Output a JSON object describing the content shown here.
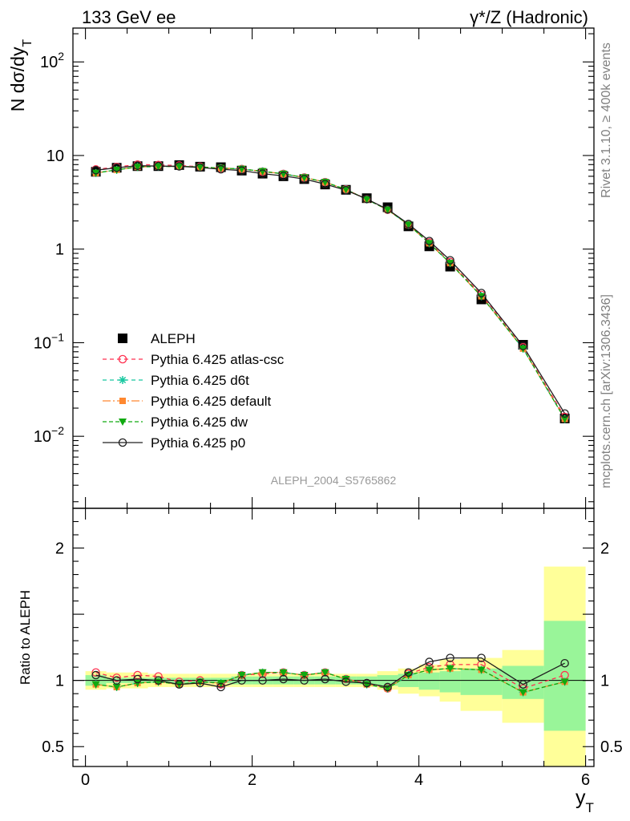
{
  "header": {
    "energy_label": "133 GeV ee",
    "process_label": "γ*/Z (Hadronic)"
  },
  "side_labels": {
    "rivet": "Rivet 3.1.10, ≥ 400k events",
    "source": "mcplots.cern.ch [arXiv:1306.3436]"
  },
  "analysis_id": "ALEPH_2004_S5765862",
  "chart_data": {
    "type": "scatter",
    "title": "133 GeV ee",
    "xlabel": "y_T",
    "ylabel": "N dσ/dy_T",
    "ratio_ylabel": "Ratio to ALEPH",
    "xlim": [
      -0.15,
      6.1
    ],
    "ylim": [
      0.0017,
      230
    ],
    "yscale": "log",
    "ratio_ylim": [
      0.35,
      2.3
    ],
    "x_ticks": [
      0,
      2,
      4,
      6
    ],
    "x_tick_labels": [
      "0",
      "2",
      "4",
      "6"
    ],
    "y_ticks": [
      0.01,
      0.1,
      1,
      10,
      100
    ],
    "y_tick_labels": [
      "10^-2",
      "10^-1",
      "1",
      "10",
      "10^2"
    ],
    "ratio_ticks": [
      0.5,
      1,
      2
    ],
    "ratio_tick_labels": [
      "0.5",
      "1",
      "2"
    ],
    "x": [
      0.125,
      0.375,
      0.625,
      0.875,
      1.125,
      1.375,
      1.625,
      1.875,
      2.125,
      2.375,
      2.625,
      2.875,
      3.125,
      3.375,
      3.625,
      3.875,
      4.125,
      4.375,
      4.75,
      5.25,
      5.75
    ],
    "bin_edges": [
      0,
      0.25,
      0.5,
      0.75,
      1.0,
      1.25,
      1.5,
      1.75,
      2.0,
      2.25,
      2.5,
      2.75,
      3.0,
      3.25,
      3.5,
      3.75,
      4.0,
      4.25,
      4.5,
      5.0,
      5.5,
      6.0
    ],
    "data": {
      "name": "ALEPH",
      "values": [
        6.7,
        7.4,
        7.7,
        7.7,
        7.9,
        7.6,
        7.5,
        6.9,
        6.4,
        6.0,
        5.6,
        4.9,
        4.3,
        3.5,
        2.8,
        1.75,
        1.07,
        0.65,
        0.29,
        0.095,
        0.0155
      ]
    },
    "series": [
      {
        "name": "Pythia 6.425 atlas-csc",
        "color": "#ff3050",
        "marker": "open-circle",
        "dash": "5,4",
        "ratio": [
          1.06,
          1.02,
          1.04,
          1.03,
          0.99,
          1.0,
          0.97,
          1.04,
          1.05,
          1.06,
          1.04,
          1.06,
          1.01,
          0.98,
          0.94,
          1.05,
          1.1,
          1.12,
          1.12,
          0.94,
          1.04
        ]
      },
      {
        "name": "Pythia 6.425 d6t",
        "color": "#18c8a0",
        "marker": "star",
        "dash": "5,4",
        "ratio": [
          0.97,
          0.95,
          0.98,
          0.99,
          0.97,
          0.99,
          0.98,
          1.04,
          1.06,
          1.06,
          1.04,
          1.06,
          1.01,
          0.97,
          0.94,
          1.04,
          1.08,
          1.09,
          1.08,
          0.91,
          0.99
        ]
      },
      {
        "name": "Pythia 6.425 default",
        "color": "#ff8830",
        "marker": "filled-square",
        "dash": "10,3,2,3",
        "ratio": [
          0.97,
          0.95,
          0.98,
          0.99,
          0.97,
          0.99,
          0.98,
          1.04,
          1.06,
          1.06,
          1.04,
          1.06,
          1.01,
          0.97,
          0.94,
          1.04,
          1.08,
          1.09,
          1.08,
          0.91,
          0.99
        ]
      },
      {
        "name": "Pythia 6.425 dw",
        "color": "#10aa10",
        "marker": "filled-triangle-down",
        "dash": "5,3",
        "ratio": [
          0.97,
          0.95,
          0.98,
          0.99,
          0.97,
          0.99,
          0.98,
          1.04,
          1.06,
          1.06,
          1.04,
          1.06,
          1.01,
          0.97,
          0.94,
          1.04,
          1.08,
          1.09,
          1.08,
          0.91,
          0.99
        ]
      },
      {
        "name": "Pythia 6.425 p0",
        "color": "#202020",
        "marker": "open-circle",
        "dash": "",
        "ratio": [
          1.04,
          1.0,
          1.01,
          1.0,
          0.97,
          0.98,
          0.95,
          1.0,
          1.0,
          1.01,
          1.0,
          1.01,
          0.99,
          0.98,
          0.95,
          1.06,
          1.14,
          1.17,
          1.17,
          0.97,
          1.13
        ]
      }
    ],
    "bands": {
      "inner_low": [
        0.96,
        0.98,
        0.98,
        0.98,
        0.98,
        0.98,
        0.98,
        0.97,
        0.97,
        0.97,
        0.97,
        0.97,
        0.97,
        0.97,
        0.96,
        0.95,
        0.93,
        0.91,
        0.89,
        0.86,
        0.62
      ],
      "inner_high": [
        1.04,
        1.02,
        1.02,
        1.02,
        1.02,
        1.02,
        1.02,
        1.03,
        1.03,
        1.03,
        1.03,
        1.03,
        1.03,
        1.03,
        1.04,
        1.05,
        1.06,
        1.07,
        1.09,
        1.11,
        1.45
      ],
      "outer_low": [
        0.93,
        0.94,
        0.94,
        0.95,
        0.95,
        0.95,
        0.95,
        0.95,
        0.95,
        0.95,
        0.95,
        0.95,
        0.95,
        0.95,
        0.93,
        0.9,
        0.88,
        0.84,
        0.77,
        0.68,
        0.33
      ],
      "outer_high": [
        1.07,
        1.06,
        1.06,
        1.05,
        1.05,
        1.05,
        1.05,
        1.05,
        1.05,
        1.05,
        1.05,
        1.05,
        1.05,
        1.05,
        1.07,
        1.09,
        1.12,
        1.16,
        1.17,
        1.23,
        1.86
      ]
    }
  },
  "colors": {
    "inner_band": "#99f599",
    "outer_band": "#ffff99",
    "data": "#000000",
    "analysis_label": "#999999",
    "side_label": "#808080"
  }
}
